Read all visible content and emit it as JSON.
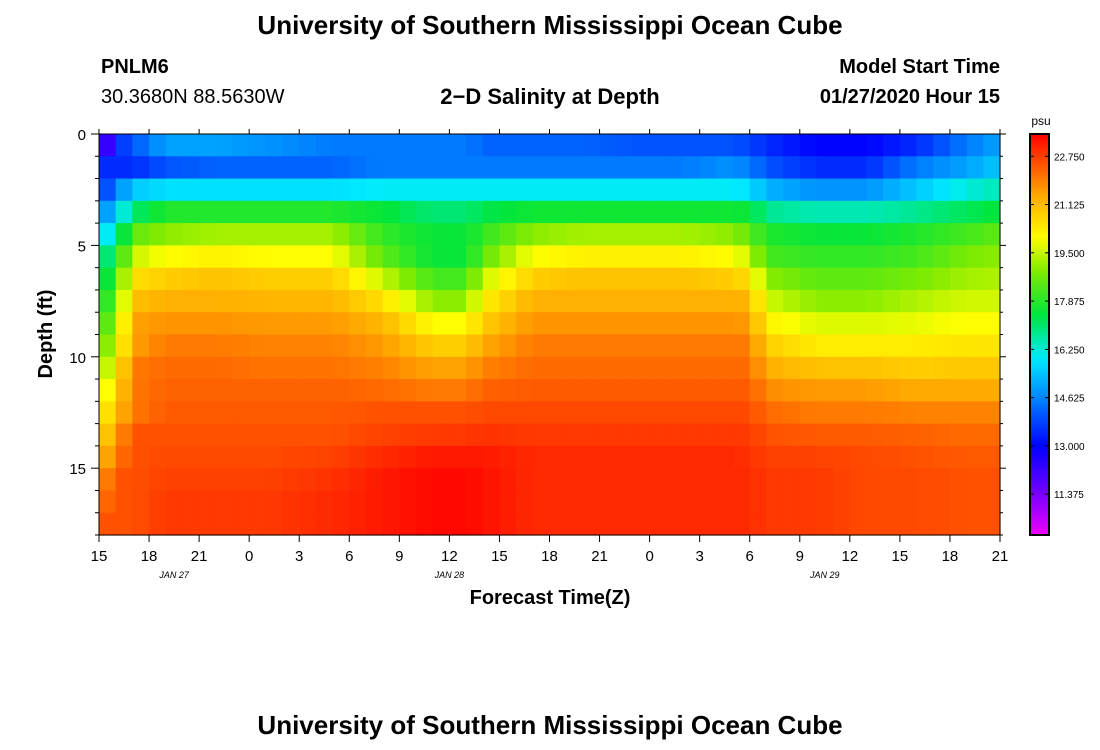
{
  "page": {
    "title": "University of Southern Mississippi Ocean Cube",
    "footer_title": "University of Southern Mississippi Ocean Cube"
  },
  "station": {
    "name": "PNLM6",
    "coords": "30.3680N 88.5630W"
  },
  "model": {
    "label": "Model Start Time",
    "time": "01/27/2020 Hour 15"
  },
  "chart_data": {
    "type": "heatmap",
    "title": "2−D Salinity at Depth",
    "xlabel": "Forecast Time(Z)",
    "ylabel": "Depth (ft)",
    "x_tick_labels": [
      "15",
      "18",
      "21",
      "0",
      "3",
      "6",
      "9",
      "12",
      "15",
      "18",
      "21",
      "0",
      "3",
      "6",
      "9",
      "12",
      "15",
      "18",
      "21"
    ],
    "x_tick_hours": [
      0,
      3,
      6,
      9,
      12,
      15,
      18,
      21,
      24,
      27,
      30,
      33,
      36,
      39,
      42,
      45,
      48,
      51,
      54
    ],
    "x_range_hours": [
      0,
      54
    ],
    "date_labels": [
      {
        "text": "JAN  27",
        "hour": 4.5
      },
      {
        "text": "JAN  28",
        "hour": 21
      },
      {
        "text": "JAN  29",
        "hour": 43.5
      }
    ],
    "y_tick_labels": [
      "0",
      "5",
      "10",
      "15"
    ],
    "y_tick_values": [
      0,
      5,
      10,
      15
    ],
    "y_range_ft": [
      0,
      18
    ],
    "colorbar": {
      "unit": "psu",
      "min": 10.0,
      "max": 23.5,
      "tick_labels": [
        "22.750",
        "21.125",
        "19.500",
        "17.875",
        "16.250",
        "14.625",
        "13.000",
        "11.375"
      ],
      "tick_values": [
        22.75,
        21.125,
        19.5,
        17.875,
        16.25,
        14.625,
        13.0,
        11.375
      ]
    },
    "grid": {
      "time_step_hours": 1,
      "depth_bins_ft": [
        0,
        1,
        2,
        3,
        4,
        5,
        6,
        7,
        8,
        9,
        10,
        11,
        12,
        13,
        14,
        15,
        16,
        17,
        18
      ],
      "time_nodes_hours": [
        0,
        1,
        2,
        4,
        7,
        10,
        14,
        17,
        20,
        22,
        23,
        26,
        29,
        32,
        35,
        38,
        39,
        40,
        43,
        46,
        49,
        52,
        54
      ],
      "salinity_by_time_node": [
        [
          11.0,
          13.5,
          13.5,
          14.5,
          15.5,
          16.5,
          17.0,
          17.5,
          18.0,
          18.5,
          19.0,
          19.5,
          20.0,
          20.5,
          21.0,
          21.5,
          22.0,
          22.5
        ],
        [
          13.5,
          13.5,
          14.5,
          15.5,
          16.5,
          17.5,
          18.0,
          18.5,
          19.0,
          19.5,
          20.0,
          20.5,
          21.0,
          21.5,
          22.0,
          22.5,
          22.5,
          22.5
        ],
        [
          14.0,
          13.5,
          15.5,
          17.0,
          18.5,
          19.5,
          20.5,
          21.0,
          21.5,
          21.5,
          22.0,
          22.0,
          22.0,
          22.5,
          22.5,
          22.5,
          22.5,
          22.5
        ],
        [
          15.0,
          14.0,
          15.8,
          17.8,
          19.0,
          20.0,
          20.8,
          21.3,
          21.7,
          22.0,
          22.2,
          22.3,
          22.4,
          22.5,
          22.6,
          22.7,
          22.8,
          22.8
        ],
        [
          15.0,
          14.2,
          15.8,
          17.8,
          19.2,
          20.2,
          21.0,
          21.3,
          21.7,
          22.0,
          22.2,
          22.3,
          22.4,
          22.5,
          22.6,
          22.7,
          22.8,
          22.8
        ],
        [
          14.8,
          14.2,
          15.8,
          17.8,
          19.2,
          20.0,
          20.8,
          21.2,
          21.6,
          21.9,
          22.1,
          22.3,
          22.4,
          22.5,
          22.6,
          22.7,
          22.8,
          22.8
        ],
        [
          14.5,
          14.2,
          15.8,
          17.8,
          19.2,
          20.0,
          20.8,
          21.2,
          21.6,
          21.9,
          22.1,
          22.3,
          22.4,
          22.5,
          22.7,
          22.9,
          23.0,
          23.0
        ],
        [
          14.5,
          14.5,
          16.0,
          17.5,
          18.0,
          18.5,
          19.5,
          20.5,
          21.2,
          21.6,
          21.9,
          22.2,
          22.5,
          22.7,
          23.0,
          23.2,
          23.2,
          23.2
        ],
        [
          14.5,
          14.5,
          16.0,
          17.0,
          17.5,
          17.5,
          18.2,
          19.0,
          20.0,
          20.8,
          21.5,
          22.0,
          22.5,
          22.8,
          23.2,
          23.4,
          23.4,
          23.4
        ],
        [
          14.5,
          14.5,
          16.0,
          17.0,
          17.5,
          17.5,
          18.2,
          19.0,
          20.0,
          20.8,
          21.5,
          22.0,
          22.5,
          22.8,
          23.2,
          23.4,
          23.4,
          23.4
        ],
        [
          14.2,
          14.5,
          16.0,
          17.3,
          18.0,
          18.5,
          19.5,
          20.2,
          20.8,
          21.4,
          21.9,
          22.3,
          22.6,
          22.9,
          23.2,
          23.3,
          23.3,
          23.3
        ],
        [
          14.2,
          14.5,
          16.0,
          17.6,
          19.0,
          20.0,
          20.8,
          21.3,
          21.7,
          22.0,
          22.2,
          22.4,
          22.6,
          22.8,
          23.0,
          23.0,
          23.0,
          23.0
        ],
        [
          14.2,
          14.5,
          16.0,
          17.6,
          19.2,
          20.2,
          21.0,
          21.3,
          21.7,
          22.0,
          22.2,
          22.4,
          22.6,
          22.8,
          23.0,
          23.0,
          23.0,
          23.0
        ],
        [
          14.0,
          14.5,
          16.0,
          17.6,
          19.2,
          20.2,
          21.0,
          21.3,
          21.7,
          22.0,
          22.2,
          22.4,
          22.6,
          22.8,
          23.0,
          23.0,
          23.0,
          23.0
        ],
        [
          14.0,
          14.5,
          16.0,
          17.6,
          19.2,
          20.2,
          21.0,
          21.3,
          21.7,
          22.0,
          22.2,
          22.4,
          22.6,
          22.8,
          23.0,
          23.0,
          23.0,
          23.0
        ],
        [
          14.0,
          14.8,
          16.0,
          17.6,
          19.0,
          20.0,
          20.8,
          21.3,
          21.7,
          22.0,
          22.2,
          22.4,
          22.6,
          22.8,
          23.0,
          23.0,
          23.0,
          23.0
        ],
        [
          13.8,
          14.5,
          15.8,
          17.5,
          18.5,
          19.5,
          20.5,
          21.2,
          21.6,
          22.0,
          22.2,
          22.4,
          22.6,
          22.8,
          22.9,
          23.0,
          23.0,
          23.0
        ],
        [
          13.5,
          14.0,
          15.2,
          16.8,
          17.8,
          18.2,
          19.0,
          19.6,
          20.2,
          20.8,
          21.3,
          21.8,
          22.2,
          22.5,
          22.7,
          22.8,
          22.8,
          22.8
        ],
        [
          13.0,
          13.5,
          14.8,
          16.5,
          17.5,
          18.0,
          18.5,
          19.0,
          19.7,
          20.3,
          21.0,
          21.6,
          22.0,
          22.4,
          22.7,
          22.8,
          22.8,
          22.8
        ],
        [
          13.0,
          13.5,
          14.8,
          16.5,
          17.5,
          18.0,
          18.5,
          19.0,
          19.7,
          20.3,
          21.0,
          21.6,
          22.0,
          22.4,
          22.6,
          22.6,
          22.6,
          22.6
        ],
        [
          13.5,
          14.5,
          15.5,
          16.8,
          17.8,
          18.2,
          18.8,
          19.3,
          19.8,
          20.3,
          20.8,
          21.4,
          21.9,
          22.3,
          22.5,
          22.6,
          22.6,
          22.6
        ],
        [
          14.5,
          15.0,
          16.2,
          17.2,
          18.2,
          18.8,
          19.2,
          19.6,
          20.0,
          20.4,
          20.9,
          21.4,
          21.9,
          22.2,
          22.4,
          22.5,
          22.5,
          22.5
        ],
        [
          15.0,
          15.5,
          16.5,
          17.5,
          18.5,
          19.0,
          19.3,
          19.6,
          20.0,
          20.4,
          20.9,
          21.4,
          21.9,
          22.2,
          22.4,
          22.5,
          22.5,
          22.5
        ]
      ]
    }
  }
}
